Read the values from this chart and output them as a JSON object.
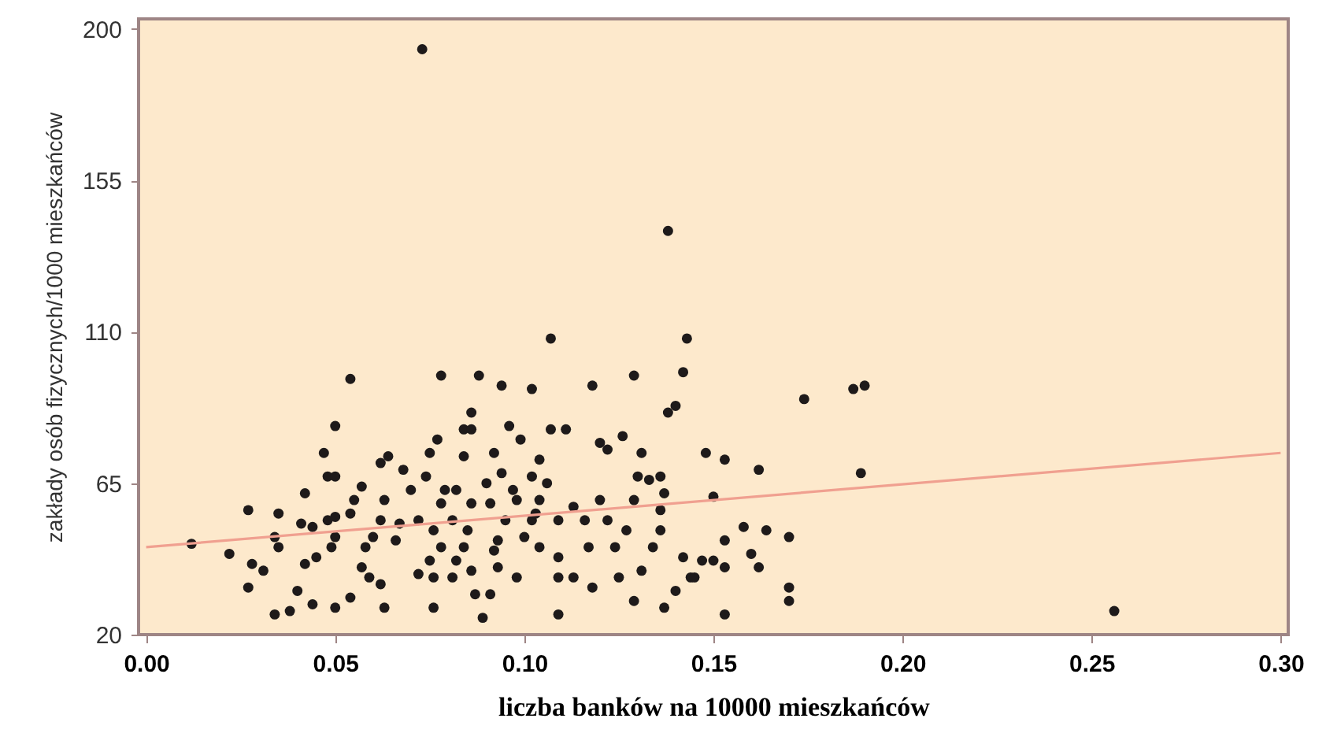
{
  "chart_data": {
    "type": "scatter",
    "xlabel": "liczba banków na 10000 mieszkańców",
    "ylabel": "zakłady osób fizycznych/1000 mieszkańców",
    "xlim": [
      -0.002,
      0.302
    ],
    "ylim": [
      20,
      203
    ],
    "xticks": [
      {
        "value": 0,
        "label": "0.00"
      },
      {
        "value": 0.05,
        "label": "0.05"
      },
      {
        "value": 0.1,
        "label": "0.10"
      },
      {
        "value": 0.15,
        "label": "0.15"
      },
      {
        "value": 0.2,
        "label": "0.20"
      },
      {
        "value": 0.25,
        "label": "0.25"
      },
      {
        "value": 0.3,
        "label": "0.30"
      }
    ],
    "yticks": [
      20,
      65,
      110,
      155,
      200
    ],
    "grid": false,
    "marker": "circle",
    "series": [
      {
        "color": "#1e1a1a",
        "x": [
          0.012,
          0.022,
          0.027,
          0.035,
          0.028,
          0.031,
          0.027,
          0.034,
          0.035,
          0.041,
          0.04,
          0.034,
          0.038,
          0.044,
          0.047,
          0.048,
          0.05,
          0.05,
          0.054,
          0.042,
          0.044,
          0.048,
          0.05,
          0.045,
          0.042,
          0.05,
          0.049,
          0.05,
          0.054,
          0.055,
          0.054,
          0.057,
          0.062,
          0.064,
          0.068,
          0.063,
          0.062,
          0.06,
          0.058,
          0.057,
          0.059,
          0.062,
          0.063,
          0.066,
          0.067,
          0.07,
          0.072,
          0.074,
          0.075,
          0.077,
          0.078,
          0.079,
          0.078,
          0.076,
          0.078,
          0.075,
          0.072,
          0.076,
          0.076,
          0.081,
          0.082,
          0.084,
          0.084,
          0.086,
          0.086,
          0.088,
          0.086,
          0.085,
          0.084,
          0.082,
          0.081,
          0.086,
          0.087,
          0.089,
          0.091,
          0.091,
          0.092,
          0.09,
          0.094,
          0.094,
          0.096,
          0.097,
          0.099,
          0.098,
          0.095,
          0.093,
          0.092,
          0.093,
          0.098,
          0.1,
          0.102,
          0.102,
          0.102,
          0.104,
          0.106,
          0.104,
          0.104,
          0.103,
          0.109,
          0.107,
          0.111,
          0.109,
          0.109,
          0.113,
          0.109,
          0.113,
          0.116,
          0.117,
          0.118,
          0.118,
          0.12,
          0.122,
          0.12,
          0.122,
          0.125,
          0.126,
          0.124,
          0.127,
          0.129,
          0.131,
          0.13,
          0.133,
          0.136,
          0.129,
          0.129,
          0.131,
          0.134,
          0.137,
          0.136,
          0.136,
          0.138,
          0.14,
          0.142,
          0.137,
          0.14,
          0.142,
          0.144,
          0.073,
          0.138,
          0.107,
          0.143,
          0.174,
          0.187,
          0.19,
          0.148,
          0.153,
          0.162,
          0.15,
          0.189,
          0.158,
          0.164,
          0.17,
          0.153,
          0.147,
          0.15,
          0.153,
          0.16,
          0.162,
          0.145,
          0.17,
          0.17,
          0.153,
          0.256
        ],
        "values": [
          47,
          44,
          57,
          56,
          41,
          39,
          34,
          49,
          46,
          53,
          33,
          26,
          27,
          29,
          74,
          67,
          67,
          82,
          96,
          62,
          52,
          54,
          55,
          43,
          41,
          49,
          46,
          28,
          31,
          60,
          56,
          64,
          71,
          73,
          69,
          60,
          54,
          49,
          46,
          40,
          37,
          35,
          28,
          48,
          53,
          63,
          54,
          67,
          74,
          78,
          97,
          63,
          59,
          51,
          46,
          42,
          38,
          37,
          28,
          54,
          63,
          73,
          81,
          86,
          81,
          97,
          59,
          51,
          46,
          42,
          37,
          39,
          32,
          25,
          32,
          59,
          74,
          65,
          68,
          94,
          82,
          63,
          78,
          60,
          54,
          48,
          45,
          40,
          37,
          49,
          54,
          93,
          67,
          72,
          65,
          60,
          46,
          56,
          43,
          81,
          81,
          54,
          37,
          37,
          26,
          58,
          54,
          46,
          34,
          94,
          77,
          75,
          60,
          54,
          37,
          79,
          46,
          51,
          60,
          74,
          67,
          66,
          67,
          97,
          30,
          39,
          46,
          62,
          57,
          51,
          86,
          88,
          98,
          28,
          33,
          43,
          37,
          194,
          140,
          108,
          108,
          90,
          93,
          94,
          74,
          72,
          69,
          61,
          68,
          52,
          51,
          49,
          48,
          42,
          42,
          40,
          44,
          40,
          37,
          34,
          30,
          26,
          27
        ]
      },
      {
        "type": "line",
        "color": "#f0a090",
        "line_style": "solid",
        "marker": "none",
        "x": [
          0,
          0.3
        ],
        "values": [
          46,
          74
        ]
      }
    ]
  }
}
